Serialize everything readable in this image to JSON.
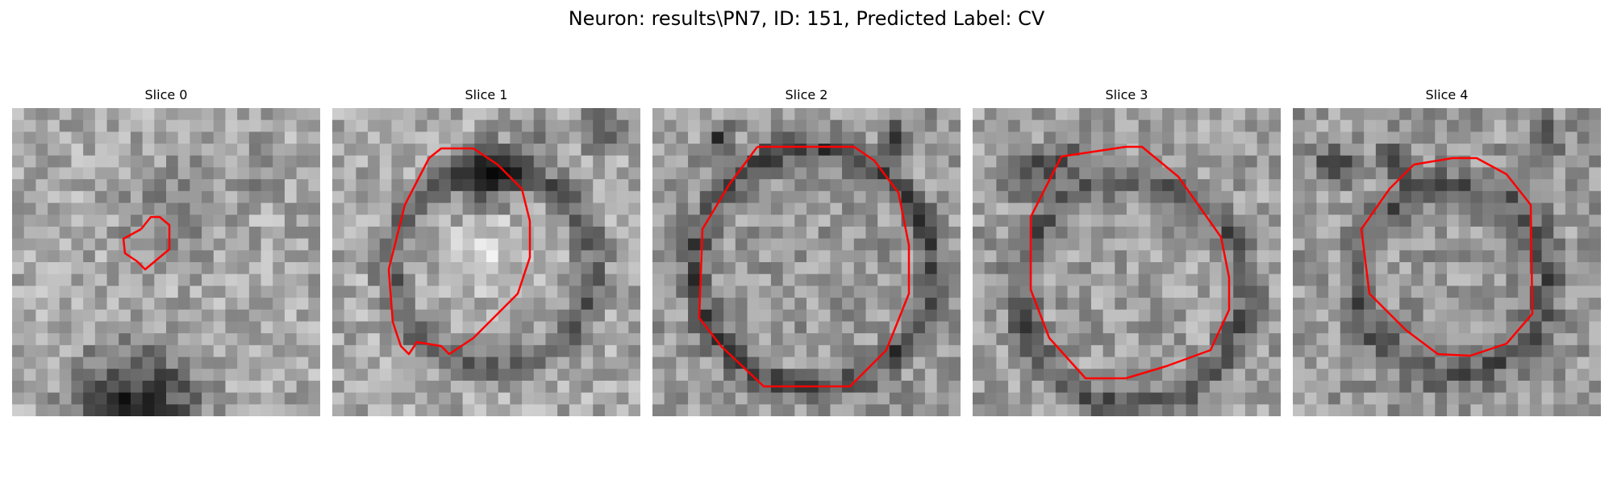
{
  "title": "Neuron: results\\PN7, ID: 151, Predicted Label: CV",
  "contour_color": "#ff0000",
  "colormap": "grayscale",
  "slices": [
    {
      "label": "Slice 0"
    },
    {
      "label": "Slice 1"
    },
    {
      "label": "Slice 2"
    },
    {
      "label": "Slice 3"
    },
    {
      "label": "Slice 4"
    }
  ]
}
